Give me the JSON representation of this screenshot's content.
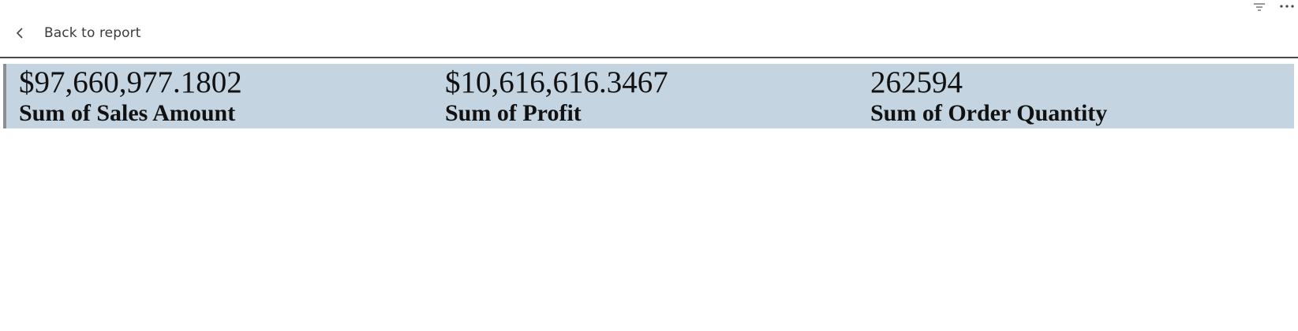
{
  "header": {
    "back_label": "Back to report"
  },
  "toolbar": {
    "icons": [
      "filter-icon",
      "more-options-icon"
    ]
  },
  "kpis": [
    {
      "value": "$97,660,977.1802",
      "label": "Sum of Sales Amount"
    },
    {
      "value": "$10,616,616.3467",
      "label": "Sum of Profit"
    },
    {
      "value": "262594",
      "label": "Sum of Order Quantity"
    }
  ],
  "colors": {
    "kpi_band_background": "#c4d5e1",
    "kpi_band_accent": "#8b8f94",
    "divider": "#4a4a4a",
    "text": "#111111"
  }
}
